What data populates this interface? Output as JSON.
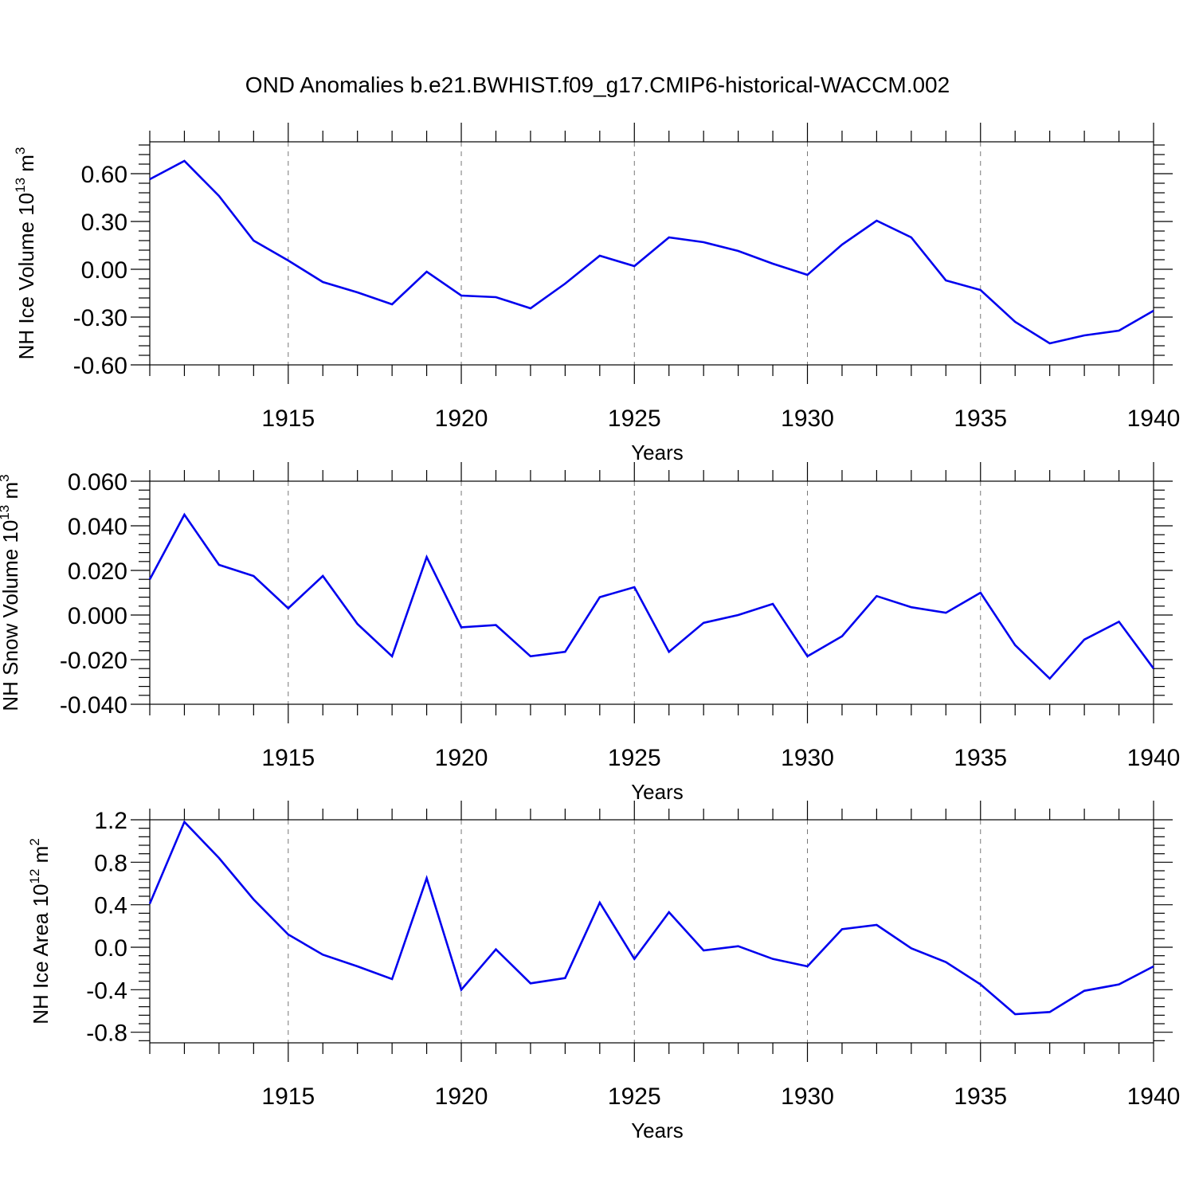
{
  "title": "OND Anomalies b.e21.BWHIST.f09_g17.CMIP6-historical-WACCM.002",
  "line_color": "#0000ee",
  "chart_data": [
    {
      "type": "line",
      "xlabel": "Years",
      "ylabel": {
        "main": "NH Ice Volume 10",
        "sup1": "13",
        "mid": " m",
        "sup2": "3"
      },
      "xlim": [
        1911,
        1940
      ],
      "ylim": [
        -0.6,
        0.8
      ],
      "xticks": [
        1915,
        1920,
        1925,
        1930,
        1935,
        1940
      ],
      "xtick_labels": [
        "1915",
        "1920",
        "1925",
        "1930",
        "1935",
        "1940"
      ],
      "yticks": [
        -0.6,
        -0.3,
        0.0,
        0.3,
        0.6
      ],
      "ytick_labels": [
        "-0.60",
        "-0.30",
        "0.00",
        "0.30",
        "0.60"
      ],
      "grid": "dashed vertical at major x ticks",
      "x": [
        1911,
        1912,
        1913,
        1914,
        1915,
        1916,
        1917,
        1918,
        1919,
        1920,
        1921,
        1922,
        1923,
        1924,
        1925,
        1926,
        1927,
        1928,
        1929,
        1930,
        1931,
        1932,
        1933,
        1934,
        1935,
        1936,
        1937,
        1938,
        1939,
        1940
      ],
      "values": [
        0.565,
        0.68,
        0.46,
        0.18,
        0.055,
        -0.08,
        -0.145,
        -0.22,
        -0.015,
        -0.165,
        -0.175,
        -0.245,
        -0.09,
        0.085,
        0.02,
        0.2,
        0.17,
        0.115,
        0.035,
        -0.035,
        0.155,
        0.305,
        0.2,
        -0.07,
        -0.13,
        -0.33,
        -0.465,
        -0.415,
        -0.385,
        -0.26
      ]
    },
    {
      "type": "line",
      "xlabel": "Years",
      "ylabel": {
        "main": "NH Snow Volume 10",
        "sup1": "13",
        "mid": " m",
        "sup2": "3"
      },
      "xlim": [
        1911,
        1940
      ],
      "ylim": [
        -0.04,
        0.06
      ],
      "xticks": [
        1915,
        1920,
        1925,
        1930,
        1935,
        1940
      ],
      "xtick_labels": [
        "1915",
        "1920",
        "1925",
        "1930",
        "1935",
        "1940"
      ],
      "yticks": [
        -0.04,
        -0.02,
        0.0,
        0.02,
        0.04,
        0.06
      ],
      "ytick_labels": [
        "-0.040",
        "-0.020",
        "0.000",
        "0.020",
        "0.040",
        "0.060"
      ],
      "grid": "dashed vertical at major x ticks",
      "x": [
        1911,
        1912,
        1913,
        1914,
        1915,
        1916,
        1917,
        1918,
        1919,
        1920,
        1921,
        1922,
        1923,
        1924,
        1925,
        1926,
        1927,
        1928,
        1929,
        1930,
        1931,
        1932,
        1933,
        1934,
        1935,
        1936,
        1937,
        1938,
        1939,
        1940
      ],
      "values": [
        0.016,
        0.045,
        0.0225,
        0.0175,
        0.003,
        0.0175,
        -0.004,
        -0.0185,
        0.026,
        -0.0055,
        -0.0045,
        -0.0185,
        -0.0165,
        0.008,
        0.0125,
        -0.0165,
        -0.0035,
        0.0,
        0.005,
        -0.0185,
        -0.0095,
        0.0085,
        0.0035,
        0.001,
        0.01,
        -0.0135,
        -0.0285,
        -0.011,
        -0.003,
        -0.024
      ]
    },
    {
      "type": "line",
      "xlabel": "Years",
      "ylabel": {
        "main": "NH Ice Area 10",
        "sup1": "12",
        "mid": " m",
        "sup2": "2"
      },
      "xlim": [
        1911,
        1940
      ],
      "ylim": [
        -0.9,
        1.2
      ],
      "xticks": [
        1915,
        1920,
        1925,
        1930,
        1935,
        1940
      ],
      "xtick_labels": [
        "1915",
        "1920",
        "1925",
        "1930",
        "1935",
        "1940"
      ],
      "yticks": [
        -0.8,
        -0.4,
        0.0,
        0.4,
        0.8,
        1.2
      ],
      "ytick_labels": [
        "-0.8",
        "-0.4",
        "0.0",
        "0.4",
        "0.8",
        "1.2"
      ],
      "grid": "dashed vertical at major x ticks",
      "x": [
        1911,
        1912,
        1913,
        1914,
        1915,
        1916,
        1917,
        1918,
        1919,
        1920,
        1921,
        1922,
        1923,
        1924,
        1925,
        1926,
        1927,
        1928,
        1929,
        1930,
        1931,
        1932,
        1933,
        1934,
        1935,
        1936,
        1937,
        1938,
        1939,
        1940
      ],
      "values": [
        0.41,
        1.18,
        0.84,
        0.45,
        0.12,
        -0.07,
        -0.18,
        -0.3,
        0.65,
        -0.4,
        -0.02,
        -0.34,
        -0.29,
        0.42,
        -0.11,
        0.33,
        -0.03,
        0.01,
        -0.11,
        -0.18,
        0.17,
        0.21,
        -0.01,
        -0.14,
        -0.35,
        -0.63,
        -0.61,
        -0.41,
        -0.35,
        -0.18
      ]
    }
  ]
}
